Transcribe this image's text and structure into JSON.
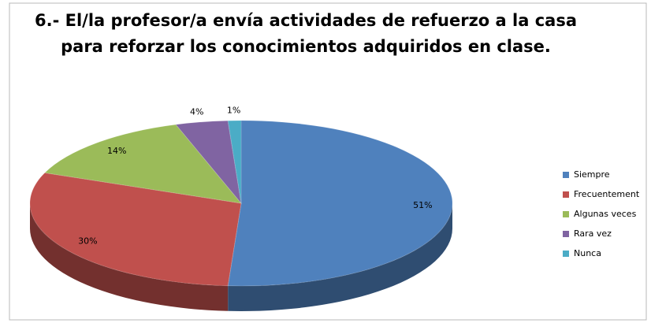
{
  "chart_data": {
    "type": "pie3d",
    "title": "6.- El/la profesor/a envía actividades de refuerzo a la casa para reforzar los conocimientos adquiridos en clase.",
    "categories": [
      "Siempre",
      "Frecuentement",
      "Algunas veces",
      "Rara vez",
      "Nunca"
    ],
    "values": [
      51,
      30,
      14,
      4,
      1
    ],
    "value_labels": [
      "51%",
      "30%",
      "14%",
      "4%",
      "1%"
    ],
    "colors": [
      "#4f81bd",
      "#c0504d",
      "#9bbb59",
      "#8064a2",
      "#4bacc6"
    ],
    "legend": "right"
  }
}
